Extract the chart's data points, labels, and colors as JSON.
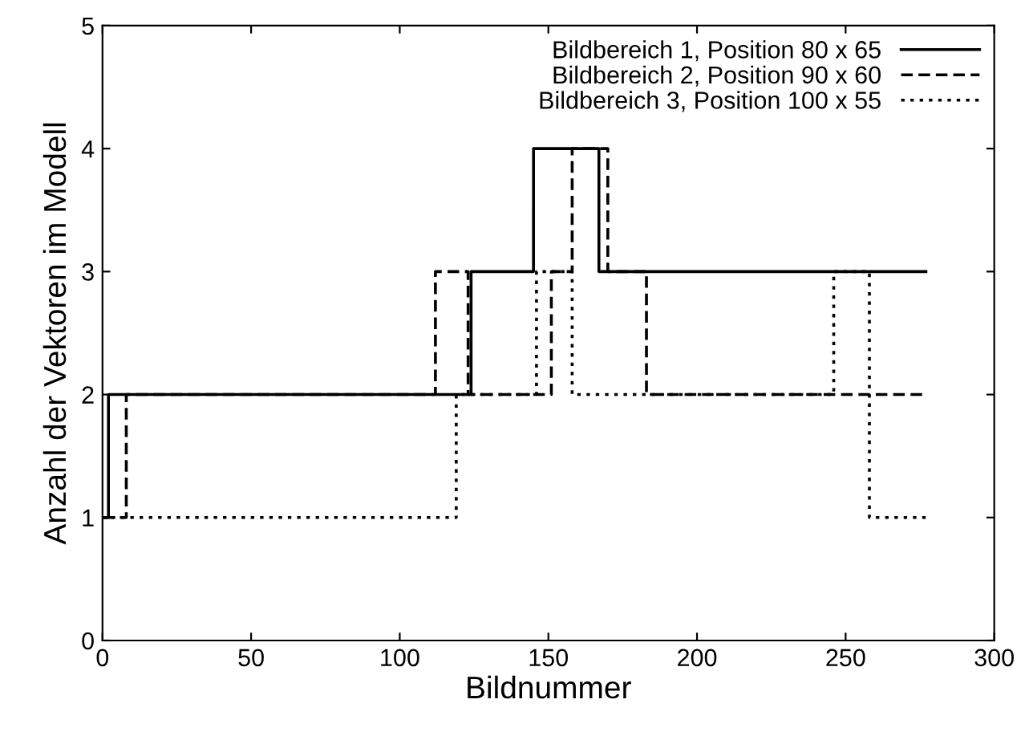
{
  "chart_data": {
    "type": "step",
    "xlabel": "Bildnummer",
    "ylabel": "Anzahl der Vektoren im Modell",
    "xlim": [
      0,
      300
    ],
    "ylim": [
      0,
      5
    ],
    "xticks": [
      0,
      50,
      100,
      150,
      200,
      250,
      300
    ],
    "yticks": [
      0,
      1,
      2,
      3,
      4,
      5
    ],
    "grid": false,
    "legend": "top right",
    "series": [
      {
        "name": "Bildbereich 1, Position 80 x 65",
        "color": "#000000",
        "line_style": "solid",
        "x": [
          0,
          2,
          124,
          145,
          167,
          277
        ],
        "values": [
          1,
          2,
          3,
          4,
          3,
          3
        ]
      },
      {
        "name": "Bildbereich 2, Position 90 x 60",
        "color": "#000000",
        "line_style": "dashed",
        "x": [
          0,
          8,
          112,
          123,
          151,
          158,
          170,
          183,
          277
        ],
        "values": [
          1,
          2,
          3,
          2,
          3,
          4,
          3,
          2,
          2
        ]
      },
      {
        "name": "Bildbereich 3, Position 100 x 55",
        "color": "#000000",
        "line_style": "dotted",
        "x": [
          0,
          119,
          146,
          158,
          246,
          258,
          277
        ],
        "values": [
          1,
          2,
          3,
          2,
          3,
          1,
          1
        ]
      }
    ]
  }
}
